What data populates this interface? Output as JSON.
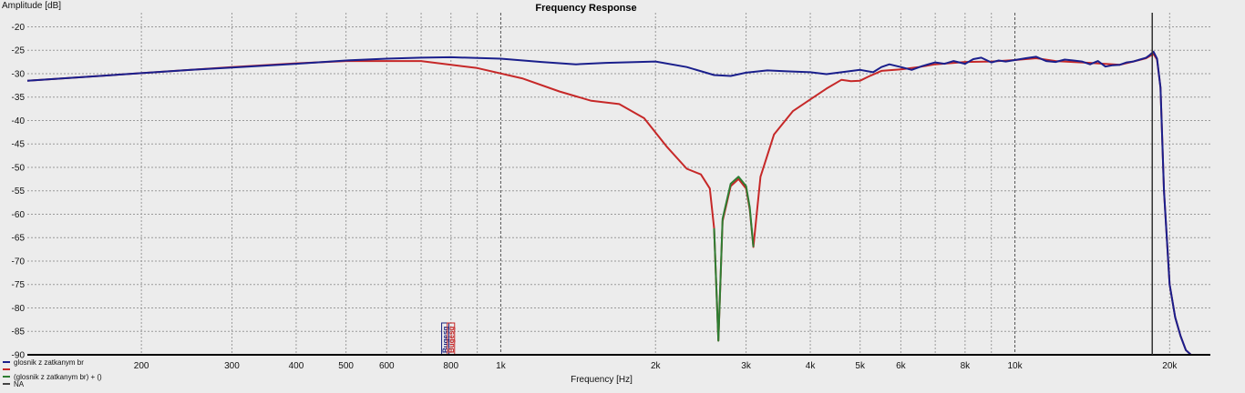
{
  "chart_data": {
    "type": "line",
    "title": "Frequency Response",
    "ylabel": "Amplitude [dB]",
    "xlabel": "Frequency [Hz]",
    "x_scale": "log",
    "xlim": [
      120,
      24000
    ],
    "ylim": [
      -90,
      -17
    ],
    "grid": true,
    "y_ticks": [
      -20,
      -25,
      -30,
      -35,
      -40,
      -45,
      -50,
      -55,
      -60,
      -65,
      -70,
      -75,
      -80,
      -85,
      -90
    ],
    "x_tick_labels": [
      {
        "value": 200,
        "label": "200"
      },
      {
        "value": 300,
        "label": "300"
      },
      {
        "value": 400,
        "label": "400"
      },
      {
        "value": 500,
        "label": "500"
      },
      {
        "value": 600,
        "label": "600"
      },
      {
        "value": 800,
        "label": "800"
      },
      {
        "value": 1000,
        "label": "1k"
      },
      {
        "value": 2000,
        "label": "2k"
      },
      {
        "value": 3000,
        "label": "3k"
      },
      {
        "value": 4000,
        "label": "4k"
      },
      {
        "value": 5000,
        "label": "5k"
      },
      {
        "value": 6000,
        "label": "6k"
      },
      {
        "value": 8000,
        "label": "8k"
      },
      {
        "value": 10000,
        "label": "10k"
      },
      {
        "value": 20000,
        "label": "20k"
      }
    ],
    "markers": [
      {
        "x": 780,
        "label": "Bugesg",
        "color": "#1a237e"
      },
      {
        "x": 800,
        "label": "Bugesg",
        "color": "#c62828"
      }
    ],
    "vertical_line": {
      "x": 18500,
      "color": "#333333"
    },
    "legend_position": "bottom-left",
    "series": [
      {
        "name": "glosnik z zatkanym br",
        "color": "#1a1f8c",
        "x": [
          120,
          150,
          200,
          250,
          300,
          400,
          500,
          600,
          700,
          800,
          1000,
          1200,
          1400,
          1600,
          2000,
          2300,
          2600,
          2800,
          3000,
          3300,
          3600,
          4000,
          4300,
          4600,
          5000,
          5300,
          5500,
          5700,
          6000,
          6300,
          6600,
          7000,
          7300,
          7600,
          8000,
          8300,
          8600,
          9000,
          9300,
          9600,
          10000,
          10500,
          11000,
          11500,
          12000,
          12500,
          13000,
          13500,
          14000,
          14500,
          15000,
          15500,
          16000,
          16500,
          17000,
          17500,
          18000,
          18300,
          18600,
          18900,
          19200,
          19500,
          20000,
          20500,
          21000,
          21500,
          22000
        ],
        "y": [
          -31.5,
          -30.8,
          -29.9,
          -29.2,
          -28.7,
          -27.9,
          -27.2,
          -26.8,
          -26.6,
          -26.5,
          -26.8,
          -27.5,
          -28,
          -27.7,
          -27.4,
          -28.6,
          -30.3,
          -30.5,
          -29.8,
          -29.3,
          -29.5,
          -29.7,
          -30.1,
          -29.7,
          -29.2,
          -29.7,
          -28.6,
          -28.0,
          -28.6,
          -29.2,
          -28.4,
          -27.6,
          -27.9,
          -27.3,
          -27.9,
          -26.9,
          -26.6,
          -27.6,
          -27.2,
          -27.4,
          -27.1,
          -26.7,
          -26.4,
          -27.3,
          -27.5,
          -27.0,
          -27.2,
          -27.4,
          -28.0,
          -27.3,
          -28.5,
          -28.2,
          -28.1,
          -27.6,
          -27.4,
          -27.0,
          -26.6,
          -26.0,
          -25.3,
          -26.8,
          -33,
          -55,
          -75,
          -82,
          -86,
          -89,
          -90
        ]
      },
      {
        "name": "",
        "color": "#c62828",
        "x": [
          120,
          200,
          300,
          400,
          500,
          700,
          900,
          1100,
          1300,
          1500,
          1700,
          1900,
          2100,
          2300,
          2450,
          2550,
          2600,
          2650,
          2700,
          2800,
          2900,
          3000,
          3050,
          3100,
          3200,
          3400,
          3700,
          4000,
          4300,
          4600,
          4800,
          5000,
          5200,
          5500,
          6000,
          6500,
          7000,
          8000,
          9000,
          10000,
          11000,
          12000,
          14000,
          16000,
          17000,
          18000,
          18600,
          18900,
          19200,
          19500,
          20000,
          20500,
          21000,
          21500,
          22000
        ],
        "y": [
          -31.5,
          -29.9,
          -28.6,
          -27.8,
          -27.3,
          -27.3,
          -28.8,
          -31,
          -33.8,
          -35.8,
          -36.5,
          -39.5,
          -45.5,
          -50.3,
          -51.5,
          -54.5,
          -63,
          -87,
          -61.5,
          -54,
          -52.5,
          -54.5,
          -59,
          -67,
          -52,
          -43,
          -38,
          -35.5,
          -33.2,
          -31.3,
          -31.6,
          -31.5,
          -30.6,
          -29.4,
          -29.1,
          -28.6,
          -28.0,
          -27.5,
          -27.4,
          -27.1,
          -26.7,
          -27.3,
          -27.7,
          -28.1,
          -27.4,
          -26.7,
          -25.8,
          -27,
          -33,
          -55,
          -75,
          -82,
          -86,
          -89,
          -90
        ]
      },
      {
        "name": "(glosnik z zatkanym br) + ()",
        "color": "#2e7d32",
        "x": [
          2600,
          2650,
          2700,
          2800,
          2900,
          3000,
          3050,
          3100
        ],
        "y": [
          -63,
          -87,
          -61,
          -53.5,
          -52,
          -54,
          -58.5,
          -67
        ]
      },
      {
        "name": "NA",
        "color": "#444444",
        "x": [],
        "y": []
      }
    ]
  }
}
